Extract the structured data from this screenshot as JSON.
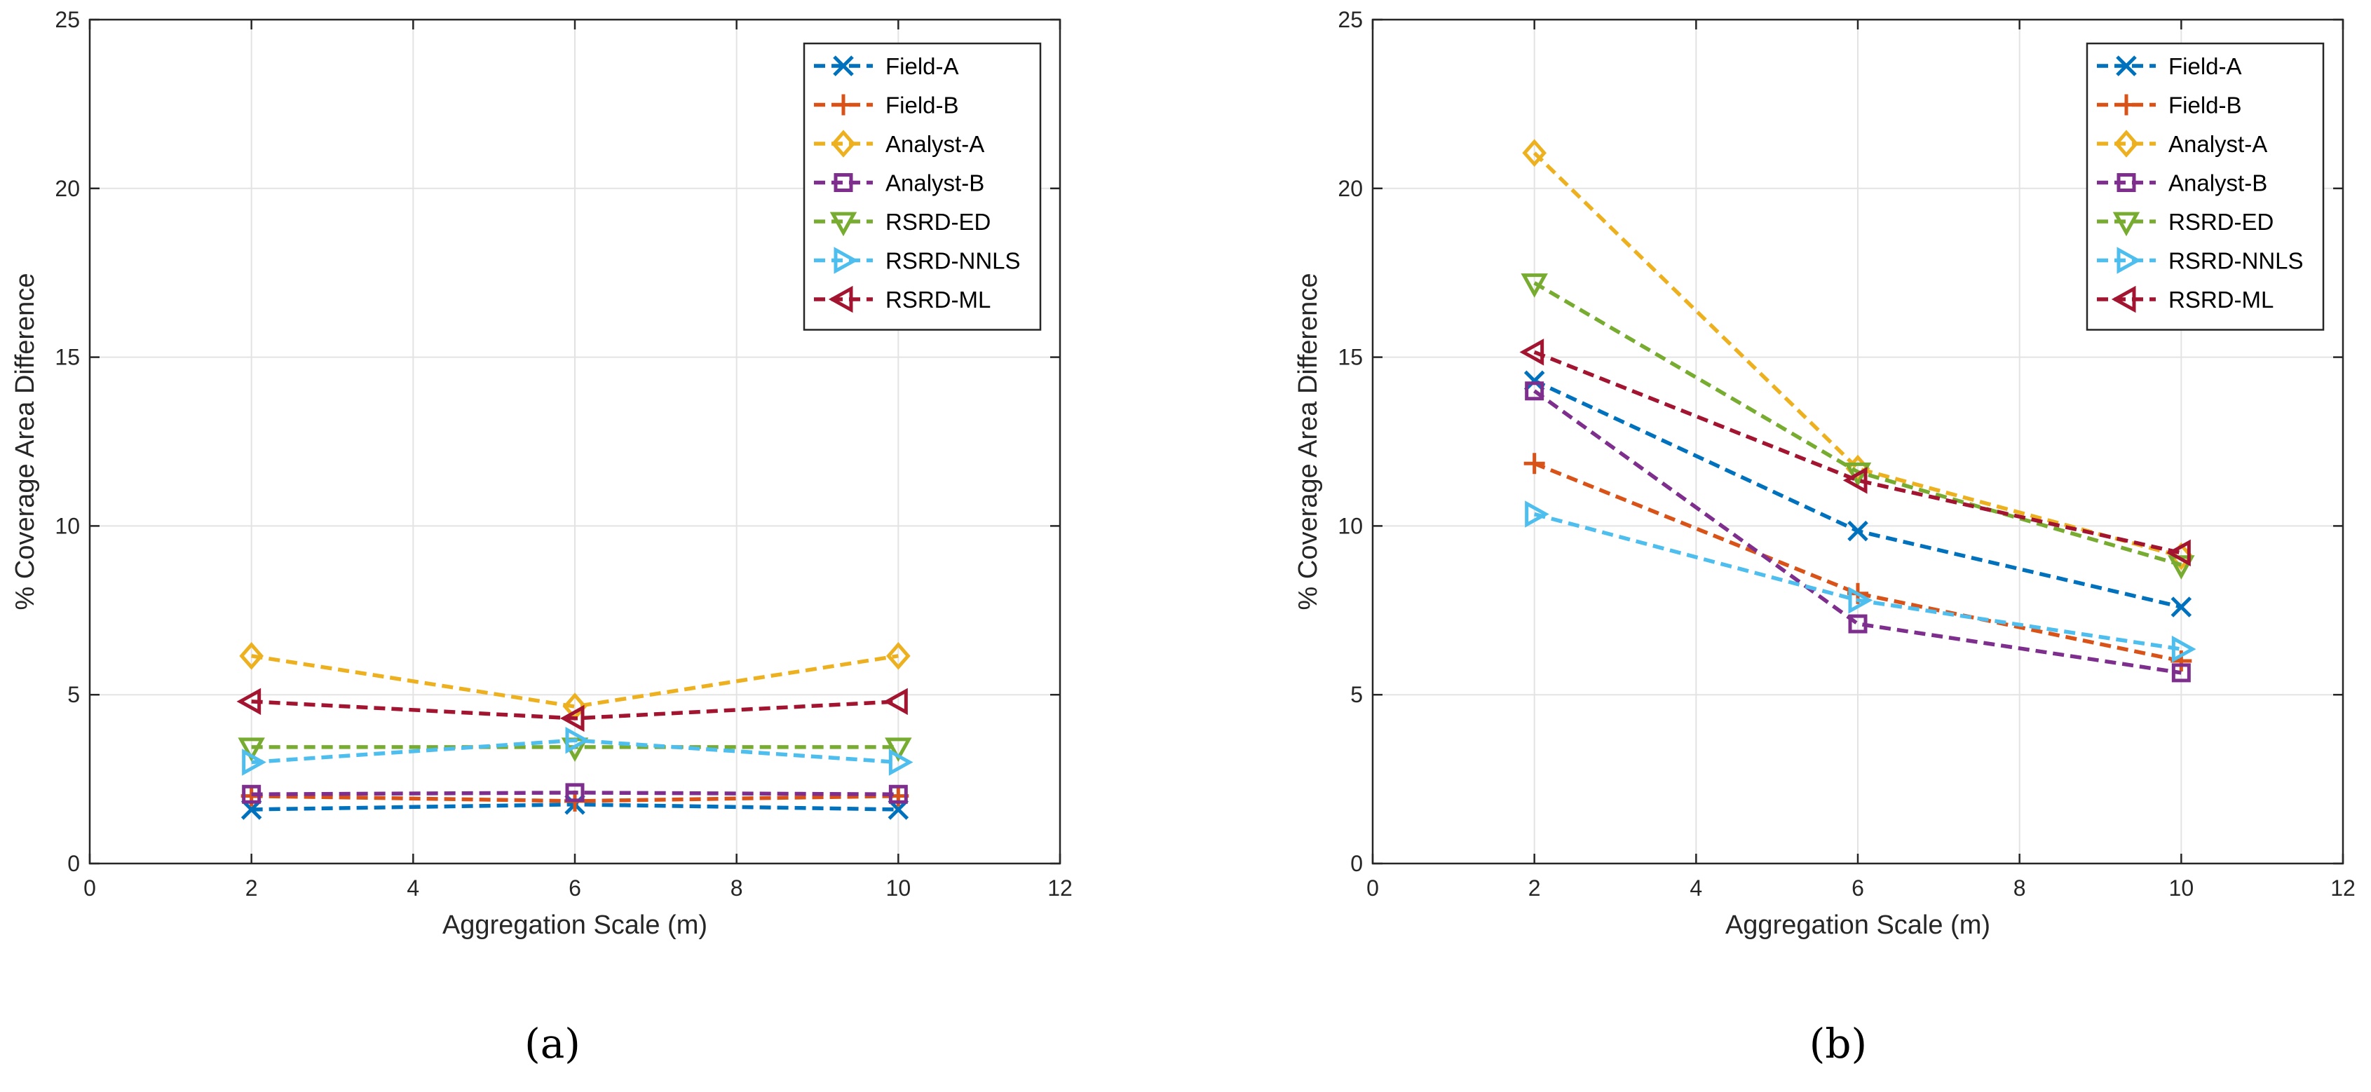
{
  "figure": {
    "captions": [
      "(a)",
      "(b)"
    ]
  },
  "chart_data": [
    {
      "type": "line",
      "panel": "a",
      "title": "",
      "xlabel": "Aggregation Scale (m)",
      "ylabel": "% Coverage Area Difference",
      "xlim": [
        0,
        12
      ],
      "ylim": [
        0,
        25
      ],
      "xticks": [
        0,
        2,
        4,
        6,
        8,
        10,
        12
      ],
      "yticks": [
        0,
        5,
        10,
        15,
        20,
        25
      ],
      "grid": true,
      "legend_position": "top-right",
      "x": [
        2,
        6,
        10
      ],
      "series": [
        {
          "name": "Field-A",
          "values": [
            1.6,
            1.75,
            1.6
          ],
          "color": "#0072BD",
          "marker": "x"
        },
        {
          "name": "Field-B",
          "values": [
            2.0,
            1.85,
            2.0
          ],
          "color": "#D95319",
          "marker": "+"
        },
        {
          "name": "Analyst-A",
          "values": [
            6.15,
            4.65,
            6.15
          ],
          "color": "#EDB120",
          "marker": "diamond"
        },
        {
          "name": "Analyst-B",
          "values": [
            2.05,
            2.1,
            2.05
          ],
          "color": "#7E2F8E",
          "marker": "square"
        },
        {
          "name": "RSRD-ED",
          "values": [
            3.45,
            3.45,
            3.45
          ],
          "color": "#77AC30",
          "marker": "triangle-down"
        },
        {
          "name": "RSRD-NNLS",
          "values": [
            3.0,
            3.65,
            3.0
          ],
          "color": "#4DBEEE",
          "marker": "triangle-right"
        },
        {
          "name": "RSRD-ML",
          "values": [
            4.8,
            4.3,
            4.8
          ],
          "color": "#A2142F",
          "marker": "triangle-left"
        }
      ]
    },
    {
      "type": "line",
      "panel": "b",
      "title": "",
      "xlabel": "Aggregation Scale (m)",
      "ylabel": "% Coverage Area Difference",
      "xlim": [
        0,
        12
      ],
      "ylim": [
        0,
        25
      ],
      "xticks": [
        0,
        2,
        4,
        6,
        8,
        10,
        12
      ],
      "yticks": [
        0,
        5,
        10,
        15,
        20,
        25
      ],
      "grid": true,
      "legend_position": "top-right",
      "x": [
        2,
        6,
        10
      ],
      "series": [
        {
          "name": "Field-A",
          "values": [
            14.3,
            9.85,
            7.6
          ],
          "color": "#0072BD",
          "marker": "x"
        },
        {
          "name": "Field-B",
          "values": [
            11.85,
            8.0,
            6.0
          ],
          "color": "#D95319",
          "marker": "+"
        },
        {
          "name": "Analyst-A",
          "values": [
            21.05,
            11.7,
            9.1
          ],
          "color": "#EDB120",
          "marker": "diamond"
        },
        {
          "name": "Analyst-B",
          "values": [
            14.0,
            7.1,
            5.65
          ],
          "color": "#7E2F8E",
          "marker": "square"
        },
        {
          "name": "RSRD-ED",
          "values": [
            17.2,
            11.6,
            8.85
          ],
          "color": "#77AC30",
          "marker": "triangle-down"
        },
        {
          "name": "RSRD-NNLS",
          "values": [
            10.35,
            7.8,
            6.35
          ],
          "color": "#4DBEEE",
          "marker": "triangle-right"
        },
        {
          "name": "RSRD-ML",
          "values": [
            15.15,
            11.35,
            9.2
          ],
          "color": "#A2142F",
          "marker": "triangle-left"
        }
      ]
    }
  ]
}
